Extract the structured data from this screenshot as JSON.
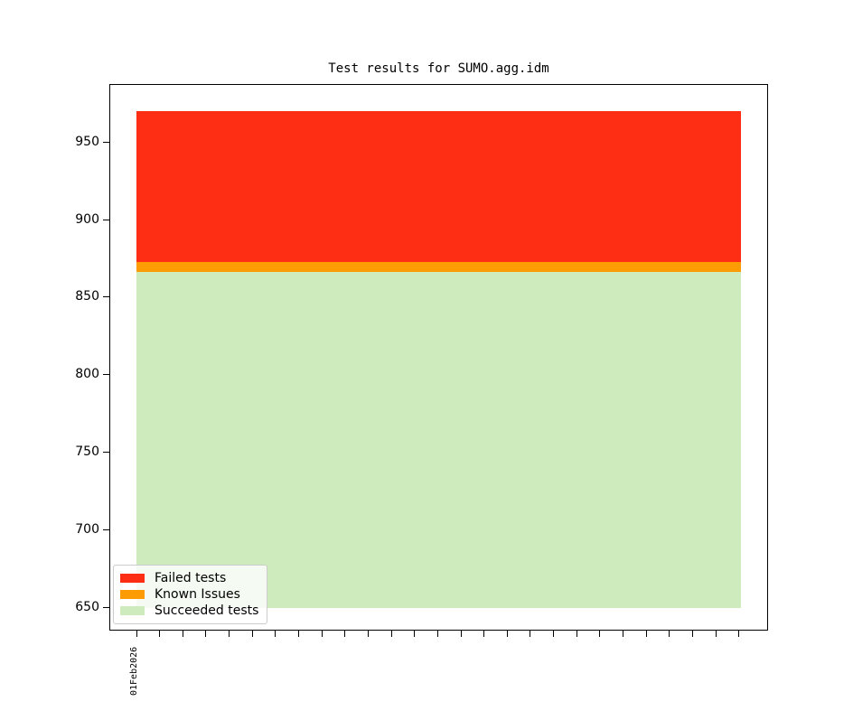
{
  "figure": {
    "background_color": "#ffffff",
    "axes_edge_color": "#000000",
    "legend_border_color": "#cccccc"
  },
  "chart_data": {
    "type": "area",
    "title": "Test results for SUMO.agg.idm",
    "xlabel": "",
    "ylabel": "",
    "grid": false,
    "legend_position": "lower-left",
    "x_tick_count": 27,
    "x_first_tick_label": "01Feb2026",
    "yticks": [
      950,
      900,
      850,
      800,
      750,
      700,
      650
    ],
    "ylim": [
      635,
      987
    ],
    "baseline": 650,
    "stack_total_top": 970,
    "series": [
      {
        "name": "Failed tests",
        "color": "#fe2e15",
        "band": [
          873,
          970
        ]
      },
      {
        "name": "Known Issues",
        "color": "#fc9b04",
        "band": [
          866.5,
          873
        ]
      },
      {
        "name": "Succeeded tests",
        "color": "#cdebbd",
        "band": [
          650,
          866.5
        ]
      }
    ],
    "values_approx": {
      "succeeded_tests": 866,
      "known_issues": 7,
      "failed_tests": 97,
      "total_tests": 970
    }
  }
}
